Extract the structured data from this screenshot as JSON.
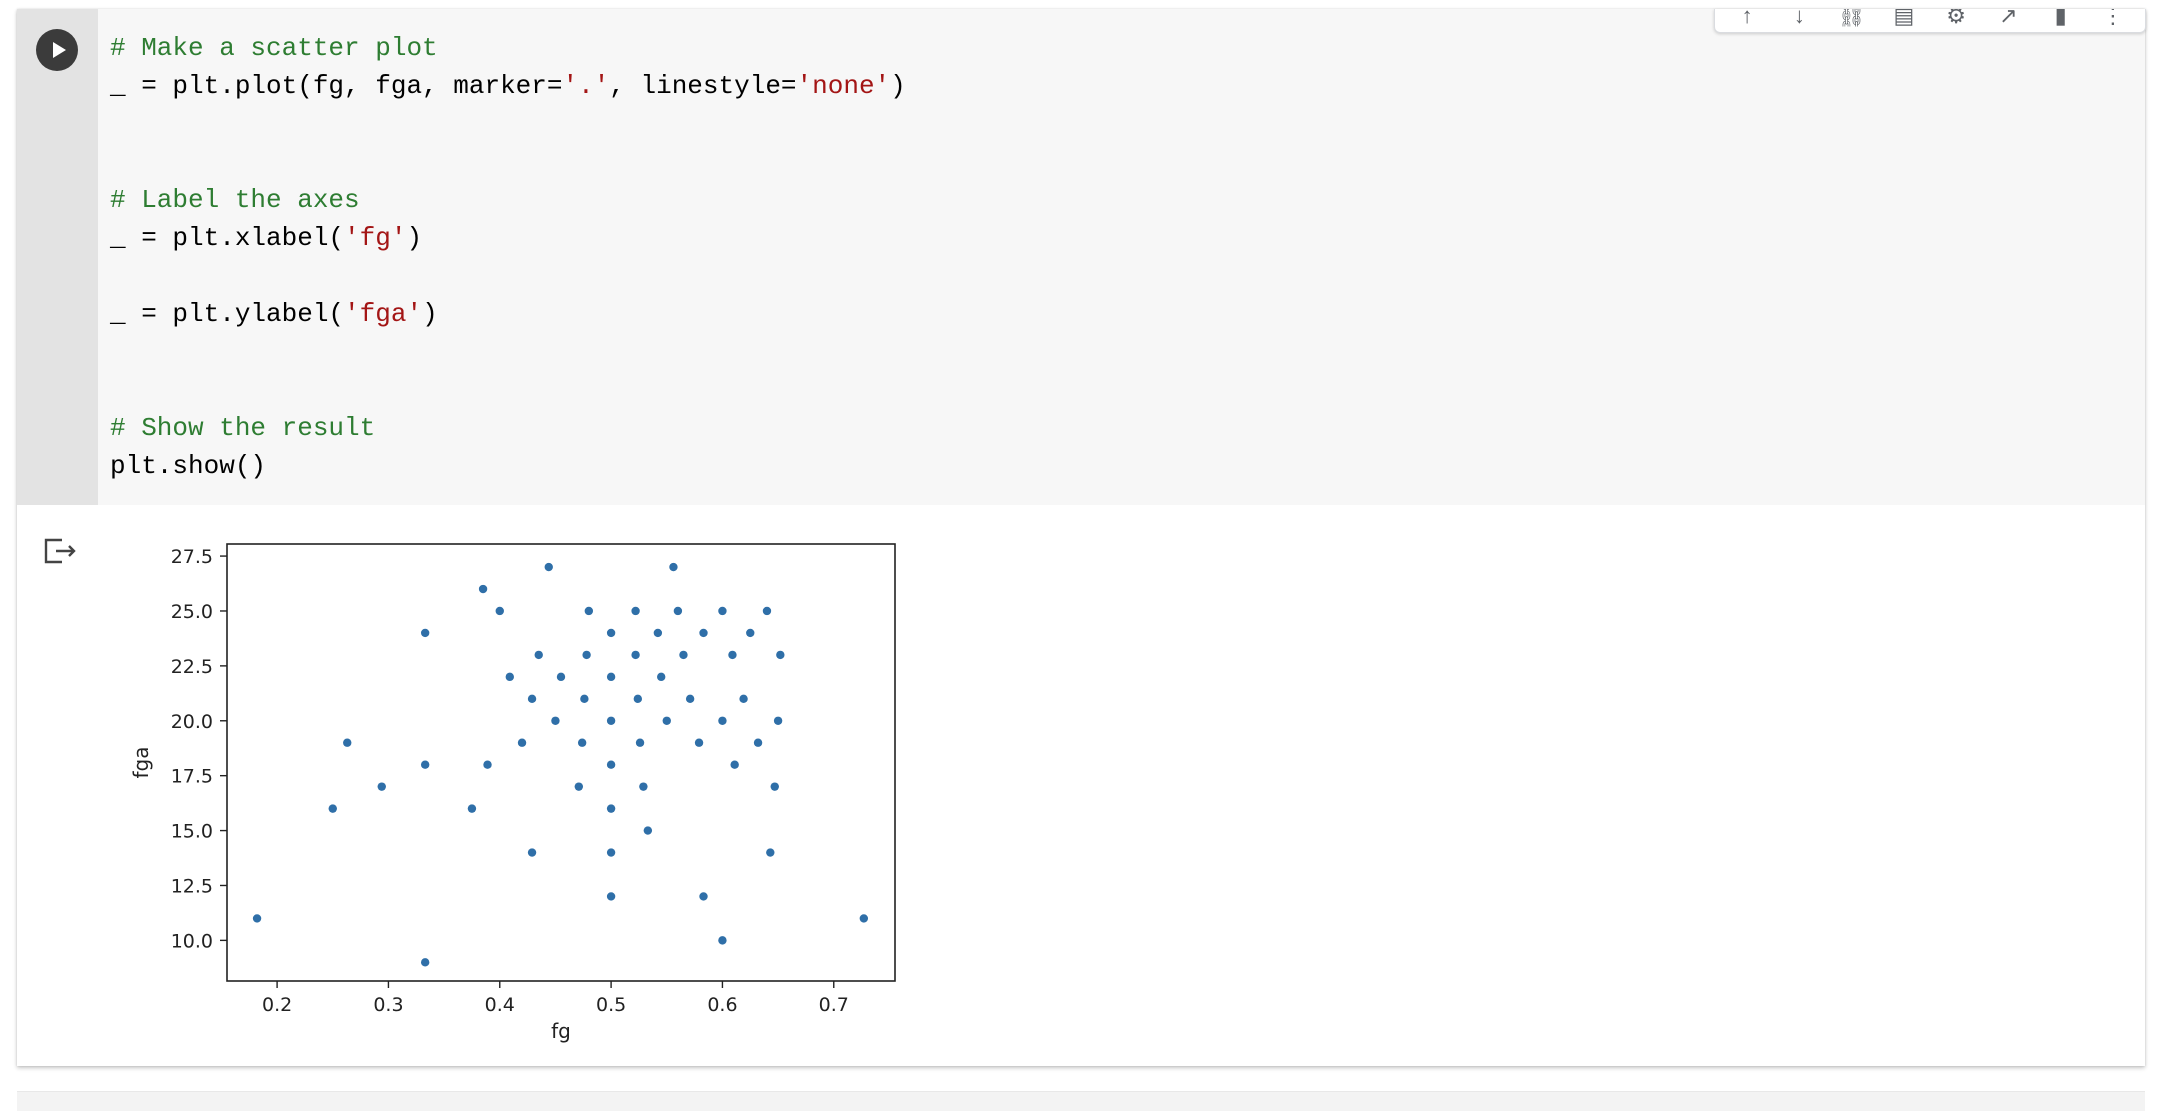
{
  "code_lines": [
    {
      "segments": [
        {
          "t": "# Make a scatter plot",
          "c": "cm"
        }
      ]
    },
    {
      "segments": [
        {
          "t": "_ = plt.plot(fg, fga, marker=",
          "c": ""
        },
        {
          "t": "'.'",
          "c": "st"
        },
        {
          "t": ", linestyle=",
          "c": ""
        },
        {
          "t": "'none'",
          "c": "st"
        },
        {
          "t": ")",
          "c": ""
        }
      ]
    },
    {
      "segments": []
    },
    {
      "segments": []
    },
    {
      "segments": [
        {
          "t": "# Label the axes",
          "c": "cm"
        }
      ]
    },
    {
      "segments": [
        {
          "t": "_ = plt.xlabel(",
          "c": ""
        },
        {
          "t": "'fg'",
          "c": "st"
        },
        {
          "t": ")",
          "c": ""
        }
      ]
    },
    {
      "segments": []
    },
    {
      "segments": [
        {
          "t": "_ = plt.ylabel(",
          "c": ""
        },
        {
          "t": "'fga'",
          "c": "st"
        },
        {
          "t": ")",
          "c": ""
        }
      ]
    },
    {
      "segments": []
    },
    {
      "segments": []
    },
    {
      "segments": [
        {
          "t": "# Show the result",
          "c": "cm"
        }
      ]
    },
    {
      "segments": [
        {
          "t": "plt.show()",
          "c": ""
        }
      ]
    }
  ],
  "toolbar_icons": [
    "move-up-icon",
    "move-down-icon",
    "link-icon",
    "comment-icon",
    "gear-icon",
    "open-in-tab-icon",
    "delete-icon",
    "more-options-icon"
  ],
  "colors": {
    "marker": "#2f6fa8",
    "comment": "#2e7d32",
    "string": "#a31515"
  },
  "chart_data": {
    "type": "scatter",
    "title": "",
    "xlabel": "fg",
    "ylabel": "fga",
    "xlim": [
      0.155,
      0.755
    ],
    "ylim": [
      8.15,
      28.05
    ],
    "xticks": [
      "0.2",
      "0.3",
      "0.4",
      "0.5",
      "0.6",
      "0.7"
    ],
    "yticks": [
      "10.0",
      "12.5",
      "15.0",
      "17.5",
      "20.0",
      "22.5",
      "25.0",
      "27.5"
    ],
    "grid": false,
    "points": [
      [
        0.182,
        11
      ],
      [
        0.25,
        16
      ],
      [
        0.263,
        19
      ],
      [
        0.294,
        17
      ],
      [
        0.333,
        24
      ],
      [
        0.333,
        18
      ],
      [
        0.333,
        9
      ],
      [
        0.375,
        16
      ],
      [
        0.385,
        26
      ],
      [
        0.389,
        18
      ],
      [
        0.4,
        25
      ],
      [
        0.409,
        22
      ],
      [
        0.42,
        19
      ],
      [
        0.429,
        21
      ],
      [
        0.429,
        14
      ],
      [
        0.435,
        23
      ],
      [
        0.444,
        27
      ],
      [
        0.45,
        20
      ],
      [
        0.455,
        22
      ],
      [
        0.471,
        17
      ],
      [
        0.474,
        19
      ],
      [
        0.476,
        21
      ],
      [
        0.478,
        23
      ],
      [
        0.48,
        25
      ],
      [
        0.5,
        24
      ],
      [
        0.5,
        22
      ],
      [
        0.5,
        20
      ],
      [
        0.5,
        18
      ],
      [
        0.5,
        16
      ],
      [
        0.5,
        14
      ],
      [
        0.5,
        12
      ],
      [
        0.522,
        23
      ],
      [
        0.522,
        25
      ],
      [
        0.524,
        21
      ],
      [
        0.526,
        19
      ],
      [
        0.529,
        17
      ],
      [
        0.533,
        15
      ],
      [
        0.542,
        24
      ],
      [
        0.545,
        22
      ],
      [
        0.55,
        20
      ],
      [
        0.556,
        27
      ],
      [
        0.56,
        25
      ],
      [
        0.565,
        23
      ],
      [
        0.571,
        21
      ],
      [
        0.579,
        19
      ],
      [
        0.583,
        24
      ],
      [
        0.583,
        12
      ],
      [
        0.6,
        25
      ],
      [
        0.6,
        20
      ],
      [
        0.6,
        10
      ],
      [
        0.609,
        23
      ],
      [
        0.611,
        18
      ],
      [
        0.619,
        21
      ],
      [
        0.625,
        24
      ],
      [
        0.632,
        19
      ],
      [
        0.64,
        25
      ],
      [
        0.643,
        14
      ],
      [
        0.647,
        17
      ],
      [
        0.652,
        23
      ],
      [
        0.65,
        20
      ],
      [
        0.727,
        11
      ]
    ]
  }
}
